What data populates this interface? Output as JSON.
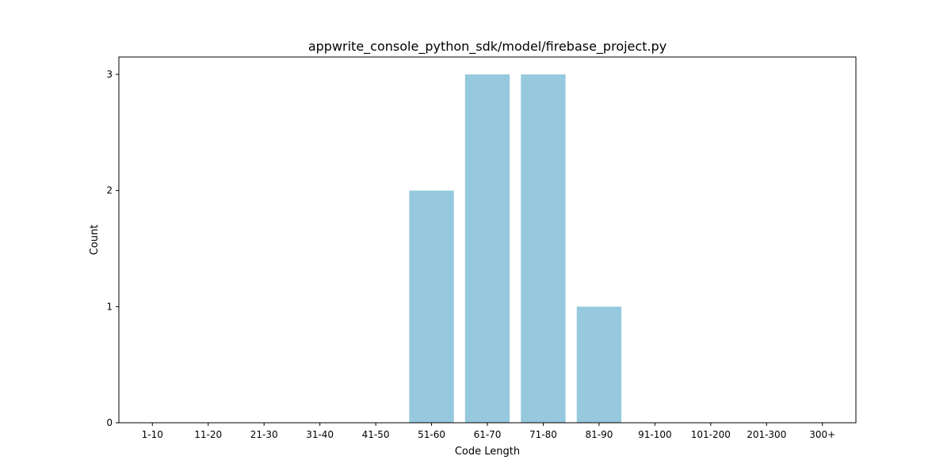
{
  "chart_data": {
    "type": "bar",
    "title": "appwrite_console_python_sdk/model/firebase_project.py",
    "xlabel": "Code Length",
    "ylabel": "Count",
    "categories": [
      "1-10",
      "11-20",
      "21-30",
      "31-40",
      "41-50",
      "51-60",
      "61-70",
      "71-80",
      "81-90",
      "91-100",
      "101-200",
      "201-300",
      "300+"
    ],
    "values": [
      0,
      0,
      0,
      0,
      0,
      2,
      3,
      3,
      1,
      0,
      0,
      0,
      0
    ],
    "ylim": [
      0,
      3.15
    ],
    "yticks": [
      0,
      1,
      2,
      3
    ],
    "grid": false,
    "bar_color": "#96c9de"
  }
}
